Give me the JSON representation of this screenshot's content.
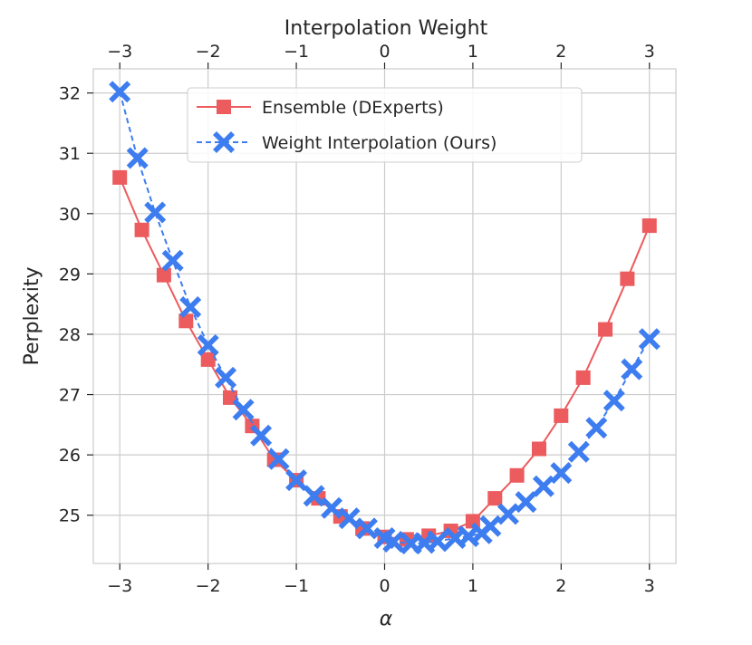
{
  "chart_data": {
    "type": "line",
    "title": "",
    "top_xlabel": "Interpolation Weight",
    "xlabel": "α",
    "ylabel": "Perplexity",
    "xlim": [
      -3.3,
      3.3
    ],
    "ylim": [
      24.2,
      32.4
    ],
    "xticks": [
      -3,
      -2,
      -1,
      0,
      1,
      2,
      3
    ],
    "xtick_labels": [
      "−3",
      "−2",
      "−1",
      "0",
      "1",
      "2",
      "3"
    ],
    "yticks": [
      25,
      26,
      27,
      28,
      29,
      30,
      31,
      32
    ],
    "ytick_labels": [
      "25",
      "26",
      "27",
      "28",
      "29",
      "30",
      "31",
      "32"
    ],
    "grid": true,
    "legend_position": "upper-center",
    "series": [
      {
        "name": "Ensemble (DExperts)",
        "color": "#ec5b5e",
        "marker": "square",
        "line": "solid",
        "x": [
          -3.0,
          -2.75,
          -2.5,
          -2.25,
          -2.0,
          -1.75,
          -1.5,
          -1.25,
          -1.0,
          -0.75,
          -0.5,
          -0.25,
          0.0,
          0.25,
          0.5,
          0.75,
          1.0,
          1.25,
          1.5,
          1.75,
          2.0,
          2.25,
          2.5,
          2.75,
          3.0
        ],
        "values": [
          30.6,
          29.73,
          28.98,
          28.22,
          27.58,
          26.95,
          26.48,
          25.92,
          25.58,
          25.28,
          24.98,
          24.78,
          24.64,
          24.6,
          24.66,
          24.74,
          24.9,
          25.28,
          25.66,
          26.1,
          26.65,
          27.28,
          28.08,
          28.92,
          29.8
        ]
      },
      {
        "name": "Weight Interpolation (Ours)",
        "color": "#3d7df0",
        "marker": "x",
        "line": "dashed",
        "x": [
          -3.0,
          -2.8,
          -2.6,
          -2.4,
          -2.2,
          -2.0,
          -1.8,
          -1.6,
          -1.4,
          -1.2,
          -1.0,
          -0.8,
          -0.6,
          -0.4,
          -0.2,
          0.0,
          0.1,
          0.3,
          0.45,
          0.6,
          0.8,
          0.95,
          1.1,
          1.2,
          1.4,
          1.6,
          1.8,
          2.0,
          2.2,
          2.4,
          2.6,
          2.8,
          3.0
        ],
        "values": [
          32.02,
          30.92,
          30.02,
          29.22,
          28.45,
          27.82,
          27.28,
          26.75,
          26.32,
          25.93,
          25.58,
          25.32,
          25.12,
          24.95,
          24.78,
          24.62,
          24.56,
          24.53,
          24.54,
          24.57,
          24.62,
          24.65,
          24.7,
          24.82,
          25.02,
          25.22,
          25.48,
          25.7,
          26.05,
          26.45,
          26.9,
          27.42,
          27.92
        ]
      }
    ]
  }
}
